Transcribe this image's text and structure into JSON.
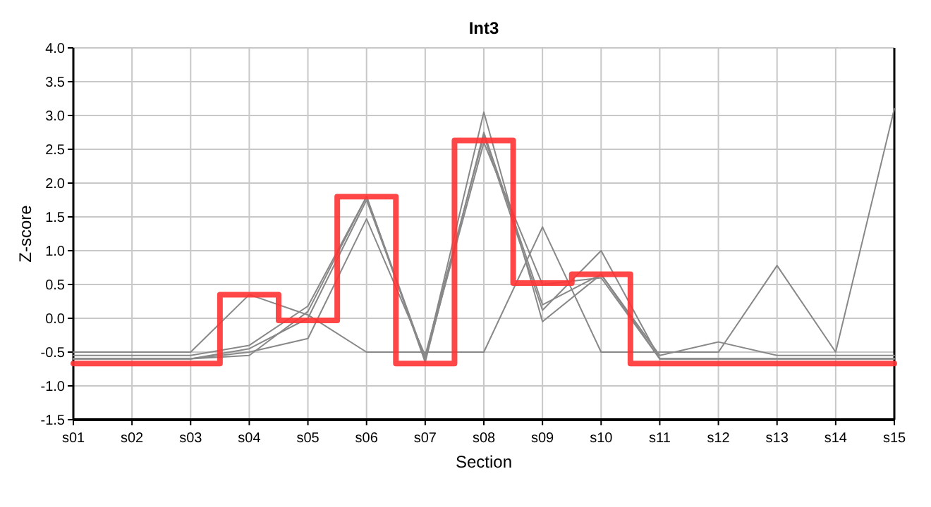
{
  "chart_data": {
    "type": "line",
    "title": "Int3",
    "xlabel": "Section",
    "ylabel": "Z-score",
    "categories": [
      "s01",
      "s02",
      "s03",
      "s04",
      "s05",
      "s06",
      "s07",
      "s08",
      "s09",
      "s10",
      "s11",
      "s12",
      "s13",
      "s14",
      "s15"
    ],
    "ylim": [
      -1.5,
      4.0
    ],
    "yticks": [
      {
        "value": -1.5,
        "label": "-1.5"
      },
      {
        "value": -1,
        "label": "-1.0"
      },
      {
        "value": -0.5,
        "label": "-0.5"
      },
      {
        "value": 0,
        "label": "0.0"
      },
      {
        "value": 0.5,
        "label": "0.5"
      },
      {
        "value": 1,
        "label": "1.0"
      },
      {
        "value": 1.5,
        "label": "1.5"
      },
      {
        "value": 2,
        "label": "2.0"
      },
      {
        "value": 2.5,
        "label": "2.5"
      },
      {
        "value": 3,
        "label": "3.0"
      },
      {
        "value": 3.5,
        "label": "3.5"
      },
      {
        "value": 4,
        "label": "4.0"
      }
    ],
    "grid": true,
    "marker": "none",
    "line_style": "solid",
    "series": [
      {
        "color": "#888888",
        "values": [
          -0.5,
          -0.5,
          -0.5,
          0.35,
          0.05,
          -0.5,
          -0.5,
          -0.5,
          1.35,
          -0.5,
          -0.5,
          -0.5,
          0.78,
          -0.5,
          3.1
        ]
      },
      {
        "color": "#888888",
        "values": [
          -0.55,
          -0.55,
          -0.55,
          -0.4,
          0.18,
          1.8,
          -0.6,
          3.05,
          -0.05,
          0.65,
          -0.55,
          -0.35,
          -0.55,
          -0.55,
          -0.55
        ]
      },
      {
        "color": "#888888",
        "values": [
          -0.6,
          -0.6,
          -0.6,
          -0.5,
          -0.3,
          1.47,
          -0.55,
          2.7,
          0.12,
          1.0,
          -0.6,
          -0.6,
          -0.6,
          -0.6,
          -0.6
        ]
      },
      {
        "color": "#888888",
        "values": [
          -0.6,
          -0.6,
          -0.6,
          -0.55,
          0.1,
          1.8,
          -0.65,
          2.75,
          0.2,
          0.65,
          -0.6,
          -0.6,
          -0.6,
          -0.6,
          -0.6
        ]
      },
      {
        "color": "#888888",
        "values": [
          -0.6,
          -0.6,
          -0.6,
          -0.45,
          0.0,
          1.75,
          -0.6,
          2.6,
          0.5,
          0.6,
          -0.6,
          -0.6,
          -0.6,
          -0.6,
          -0.6
        ]
      },
      {
        "type": "step",
        "color": "#ff3333",
        "values": [
          -0.67,
          -0.67,
          -0.67,
          0.35,
          -0.03,
          1.8,
          -0.67,
          2.63,
          0.52,
          0.65,
          -0.67,
          -0.67,
          -0.67,
          -0.67,
          -0.67
        ]
      }
    ]
  }
}
